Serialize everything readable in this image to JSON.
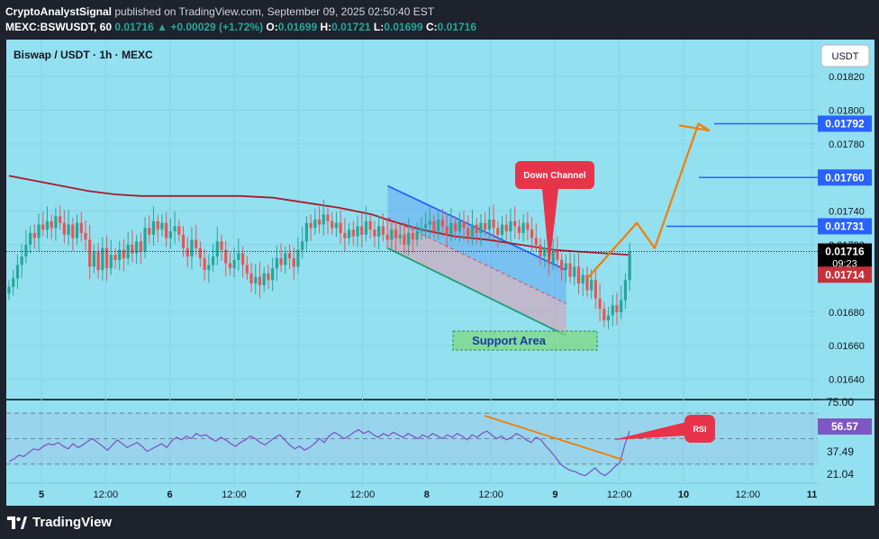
{
  "header": {
    "author": "CryptoAnalystSignal",
    "published_text": "published on TradingView.com, September 09, 2025 02:50:40 EST",
    "symbol": "MEXC:BSWUSDT, 60",
    "last": "0.01716",
    "arrow": "▲",
    "change": "+0.00029 (+1.72%)",
    "o_label": "O:",
    "o": "0.01699",
    "h_label": "H:",
    "h": "0.01721",
    "l_label": "L:",
    "l": "0.01699",
    "c_label": "C:",
    "c": "0.01716"
  },
  "chart_data": {
    "type": "candlestick",
    "title": "Biswap / USDT · 1h · MEXC",
    "currency_button": "USDT",
    "price_axis": {
      "ylim": [
        0.01628,
        0.01842
      ],
      "ticks": [
        "0.01820",
        "0.01800",
        "0.01780",
        "0.01740",
        "0.01720",
        "0.01680",
        "0.01660",
        "0.01640"
      ]
    },
    "time_axis": [
      "5",
      "12:00",
      "6",
      "12:00",
      "7",
      "12:00",
      "8",
      "12:00",
      "9",
      "12:00",
      "10",
      "12:00",
      "11"
    ],
    "bold_time_labels": [
      "5",
      "6",
      "7",
      "8",
      "9",
      "10",
      "11"
    ],
    "price_labels": [
      {
        "value": 0.01792,
        "text": "0.01792",
        "color": "#2962ff"
      },
      {
        "value": 0.0176,
        "text": "0.01760",
        "color": "#2962ff"
      },
      {
        "value": 0.01731,
        "text": "0.01731",
        "color": "#2962ff"
      },
      {
        "value": 0.01716,
        "text": "0.01716",
        "sub": "09:23",
        "color": "#000000"
      },
      {
        "value": 0.01714,
        "text": "0.01714",
        "color": "#c7303a"
      }
    ],
    "target_lines": [
      0.01792,
      0.0176,
      0.01731
    ],
    "moving_average": [
      [
        0,
        0.01761
      ],
      [
        8,
        0.01758
      ],
      [
        16,
        0.01755
      ],
      [
        24,
        0.01752
      ],
      [
        32,
        0.0175
      ],
      [
        40,
        0.01749
      ],
      [
        50,
        0.01749
      ],
      [
        60,
        0.01749
      ],
      [
        70,
        0.01749
      ],
      [
        80,
        0.01748
      ],
      [
        90,
        0.01745
      ],
      [
        100,
        0.01742
      ],
      [
        110,
        0.01738
      ],
      [
        116,
        0.01734
      ],
      [
        125,
        0.01729
      ],
      [
        135,
        0.01725
      ],
      [
        145,
        0.01723
      ],
      [
        155,
        0.0172
      ],
      [
        165,
        0.01717
      ],
      [
        172,
        0.01716
      ],
      [
        180,
        0.01715
      ],
      [
        188,
        0.01714
      ]
    ],
    "close_series": [
      0.01695,
      0.017,
      0.01708,
      0.01713,
      0.0172,
      0.01727,
      0.01724,
      0.01732,
      0.01729,
      0.01734,
      0.0173,
      0.01737,
      0.01733,
      0.01726,
      0.01732,
      0.01724,
      0.01733,
      0.01727,
      0.01723,
      0.01707,
      0.01716,
      0.01705,
      0.01718,
      0.01706,
      0.01714,
      0.01711,
      0.01717,
      0.01712,
      0.0172,
      0.01715,
      0.01722,
      0.01716,
      0.0173,
      0.01726,
      0.01734,
      0.01729,
      0.01733,
      0.01724,
      0.01728,
      0.01731,
      0.01726,
      0.01718,
      0.01713,
      0.01723,
      0.01718,
      0.01712,
      0.01705,
      0.01708,
      0.01713,
      0.01722,
      0.01717,
      0.01709,
      0.01706,
      0.01711,
      0.01715,
      0.01708,
      0.01703,
      0.01697,
      0.01701,
      0.01696,
      0.01703,
      0.01699,
      0.01706,
      0.01712,
      0.01708,
      0.01715,
      0.01712,
      0.01707,
      0.01717,
      0.01722,
      0.01733,
      0.0173,
      0.01735,
      0.01732,
      0.01738,
      0.01734,
      0.0173,
      0.01733,
      0.01727,
      0.01724,
      0.01729,
      0.01725,
      0.01731,
      0.01726,
      0.01734,
      0.01729,
      0.01725,
      0.01731,
      0.01726,
      0.01723,
      0.01729,
      0.01724,
      0.01726,
      0.0172,
      0.01727,
      0.01723,
      0.01728,
      0.0173,
      0.01732,
      0.01734,
      0.01728,
      0.01735,
      0.01731,
      0.01726,
      0.01733,
      0.01728,
      0.01734,
      0.0173,
      0.01725,
      0.01732,
      0.01727,
      0.01733,
      0.01729,
      0.01735,
      0.0173,
      0.01726,
      0.01732,
      0.01728,
      0.01734,
      0.01731,
      0.01727,
      0.01733,
      0.01729,
      0.01724,
      0.0172,
      0.01713,
      0.01718,
      0.01709,
      0.01716,
      0.01711,
      0.01705,
      0.01709,
      0.01701,
      0.01707,
      0.01697,
      0.01702,
      0.01693,
      0.01699,
      0.01688,
      0.01682,
      0.01675,
      0.01678,
      0.01684,
      0.0168,
      0.01687,
      0.01699,
      0.01716
    ],
    "channel": {
      "upper": [
        [
          0.47,
          0.01755
        ],
        [
          0.69,
          0.01705
        ]
      ],
      "lower": [
        [
          0.47,
          0.01718
        ],
        [
          0.69,
          0.01666
        ]
      ],
      "mid": [
        [
          0.47,
          0.01736
        ],
        [
          0.69,
          0.01685
        ]
      ]
    },
    "projection_path": [
      [
        0.017,
        0.716
      ],
      [
        0.01733,
        0.777
      ],
      [
        0.01718,
        0.799
      ],
      [
        0.01792,
        0.853
      ],
      [
        0.01788,
        0.866
      ],
      [
        0.01791,
        0.829
      ]
    ],
    "annotations": [
      {
        "text": "Down Channel"
      },
      {
        "text": "Support Area"
      },
      {
        "text": "RSI"
      }
    ],
    "rsi": {
      "ylim": [
        15,
        80
      ],
      "levels_text": [
        "75.00",
        "56.57",
        "37.49",
        "21.04"
      ],
      "levels": [
        70,
        50,
        30
      ],
      "current": 56.57,
      "values": [
        32,
        34,
        37,
        36,
        39,
        42,
        41,
        44,
        46,
        45,
        47,
        44,
        42,
        46,
        43,
        45,
        48,
        50,
        47,
        44,
        41,
        45,
        49,
        46,
        43,
        45,
        47,
        44,
        40,
        42,
        44,
        46,
        43,
        48,
        51,
        49,
        52,
        50,
        54,
        52,
        53,
        50,
        48,
        51,
        49,
        46,
        44,
        47,
        49,
        52,
        50,
        47,
        45,
        48,
        51,
        53,
        49,
        45,
        42,
        44,
        41,
        43,
        46,
        50,
        47,
        52,
        55,
        53,
        50,
        52,
        55,
        57,
        54,
        56,
        53,
        51,
        54,
        52,
        55,
        53,
        51,
        54,
        52,
        50,
        53,
        51,
        54,
        52,
        50,
        53,
        51,
        54,
        52,
        49,
        53,
        51,
        54,
        56,
        53,
        50,
        52,
        49,
        51,
        54,
        52,
        49,
        47,
        51,
        49,
        44,
        40,
        35,
        30,
        27,
        25,
        24,
        22,
        21,
        24,
        27,
        23,
        21,
        24,
        28,
        31,
        45,
        56
      ]
    }
  }
}
